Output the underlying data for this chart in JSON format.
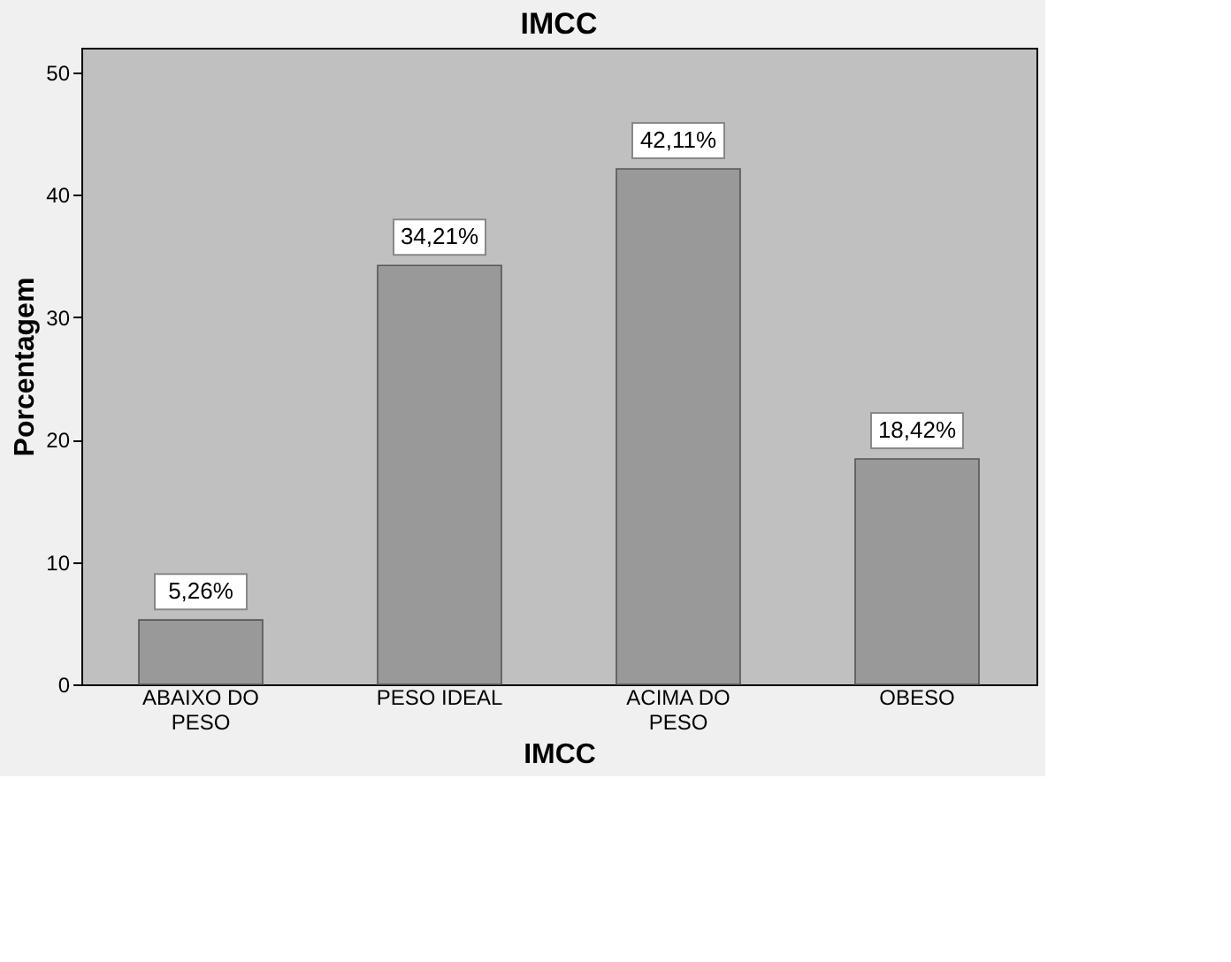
{
  "chart_data": {
    "type": "bar",
    "title": "IMCC",
    "xlabel": "IMCC",
    "ylabel": "Porcentagem",
    "categories": [
      "ABAIXO DO PESO",
      "PESO IDEAL",
      "ACIMA DO PESO",
      "OBESO"
    ],
    "values": [
      5.26,
      34.21,
      42.11,
      18.42
    ],
    "value_labels": [
      "5,26%",
      "34,21%",
      "42,11%",
      "18,42%"
    ],
    "color": "#999999",
    "ylim": [
      0,
      52
    ],
    "yticks": [
      0,
      10,
      20,
      30,
      40,
      50
    ],
    "grid": false
  }
}
